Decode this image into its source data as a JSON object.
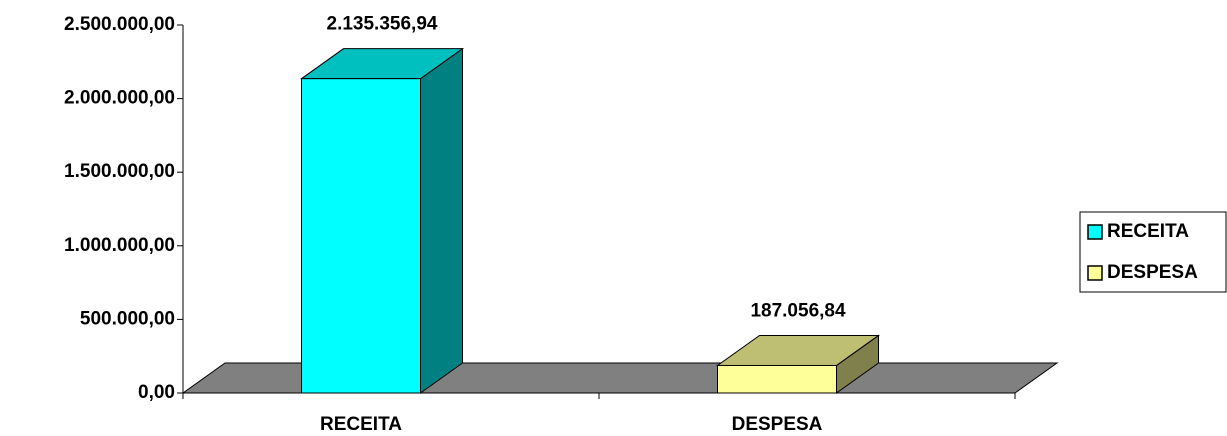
{
  "chart_data": {
    "type": "bar3d",
    "categories": [
      "RECEITA",
      "DESPESA"
    ],
    "values": [
      2135356.94,
      187056.84
    ],
    "value_labels": [
      "2.135.356,94",
      "187.056,84"
    ],
    "colors": [
      "#00ffff",
      "#ffff99"
    ],
    "floor_color": "#808080",
    "ylim": [
      0,
      2500000
    ],
    "yticks": [
      {
        "value": 0,
        "label": "0,00"
      },
      {
        "value": 500000,
        "label": "500.000,00"
      },
      {
        "value": 1000000,
        "label": "1.000.000,00"
      },
      {
        "value": 1500000,
        "label": "1.500.000,00"
      },
      {
        "value": 2000000,
        "label": "2.000.000,00"
      },
      {
        "value": 2500000,
        "label": "2.500.000,00"
      }
    ],
    "legend": "right"
  }
}
